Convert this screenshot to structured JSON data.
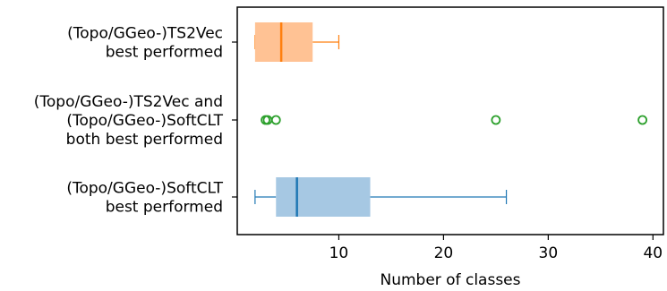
{
  "chart_data": {
    "type": "boxplot",
    "orientation": "horizontal",
    "xlabel": "Number of classes",
    "ylabel": "",
    "xlim": [
      0.3,
      41
    ],
    "xticks": [
      10,
      20,
      30,
      40
    ],
    "grid": false,
    "legend": "none",
    "categories": [
      {
        "label": [
          "(Topo/GGeo-)TS2Vec",
          "best performed"
        ],
        "color": "#ff7f0e",
        "fill": "#ffc294",
        "min": 2,
        "q1": 2,
        "median": 4.5,
        "q3": 7.5,
        "max": 10,
        "outliers": []
      },
      {
        "label": [
          "(Topo/GGeo-)TS2Vec and",
          "(Topo/GGeo-)SoftCLT",
          "both best performed"
        ],
        "color": "#2ca02c",
        "fill": "#9fd89f",
        "min": null,
        "q1": null,
        "median": null,
        "q3": null,
        "max": null,
        "outliers": [
          3,
          3.2,
          4,
          25,
          39
        ]
      },
      {
        "label": [
          "(Topo/GGeo-)SoftCLT",
          "best performed"
        ],
        "color": "#1f77b4",
        "fill": "#a6c8e3",
        "min": 2,
        "q1": 4,
        "median": 6,
        "q3": 13,
        "max": 26,
        "outliers": []
      }
    ]
  }
}
